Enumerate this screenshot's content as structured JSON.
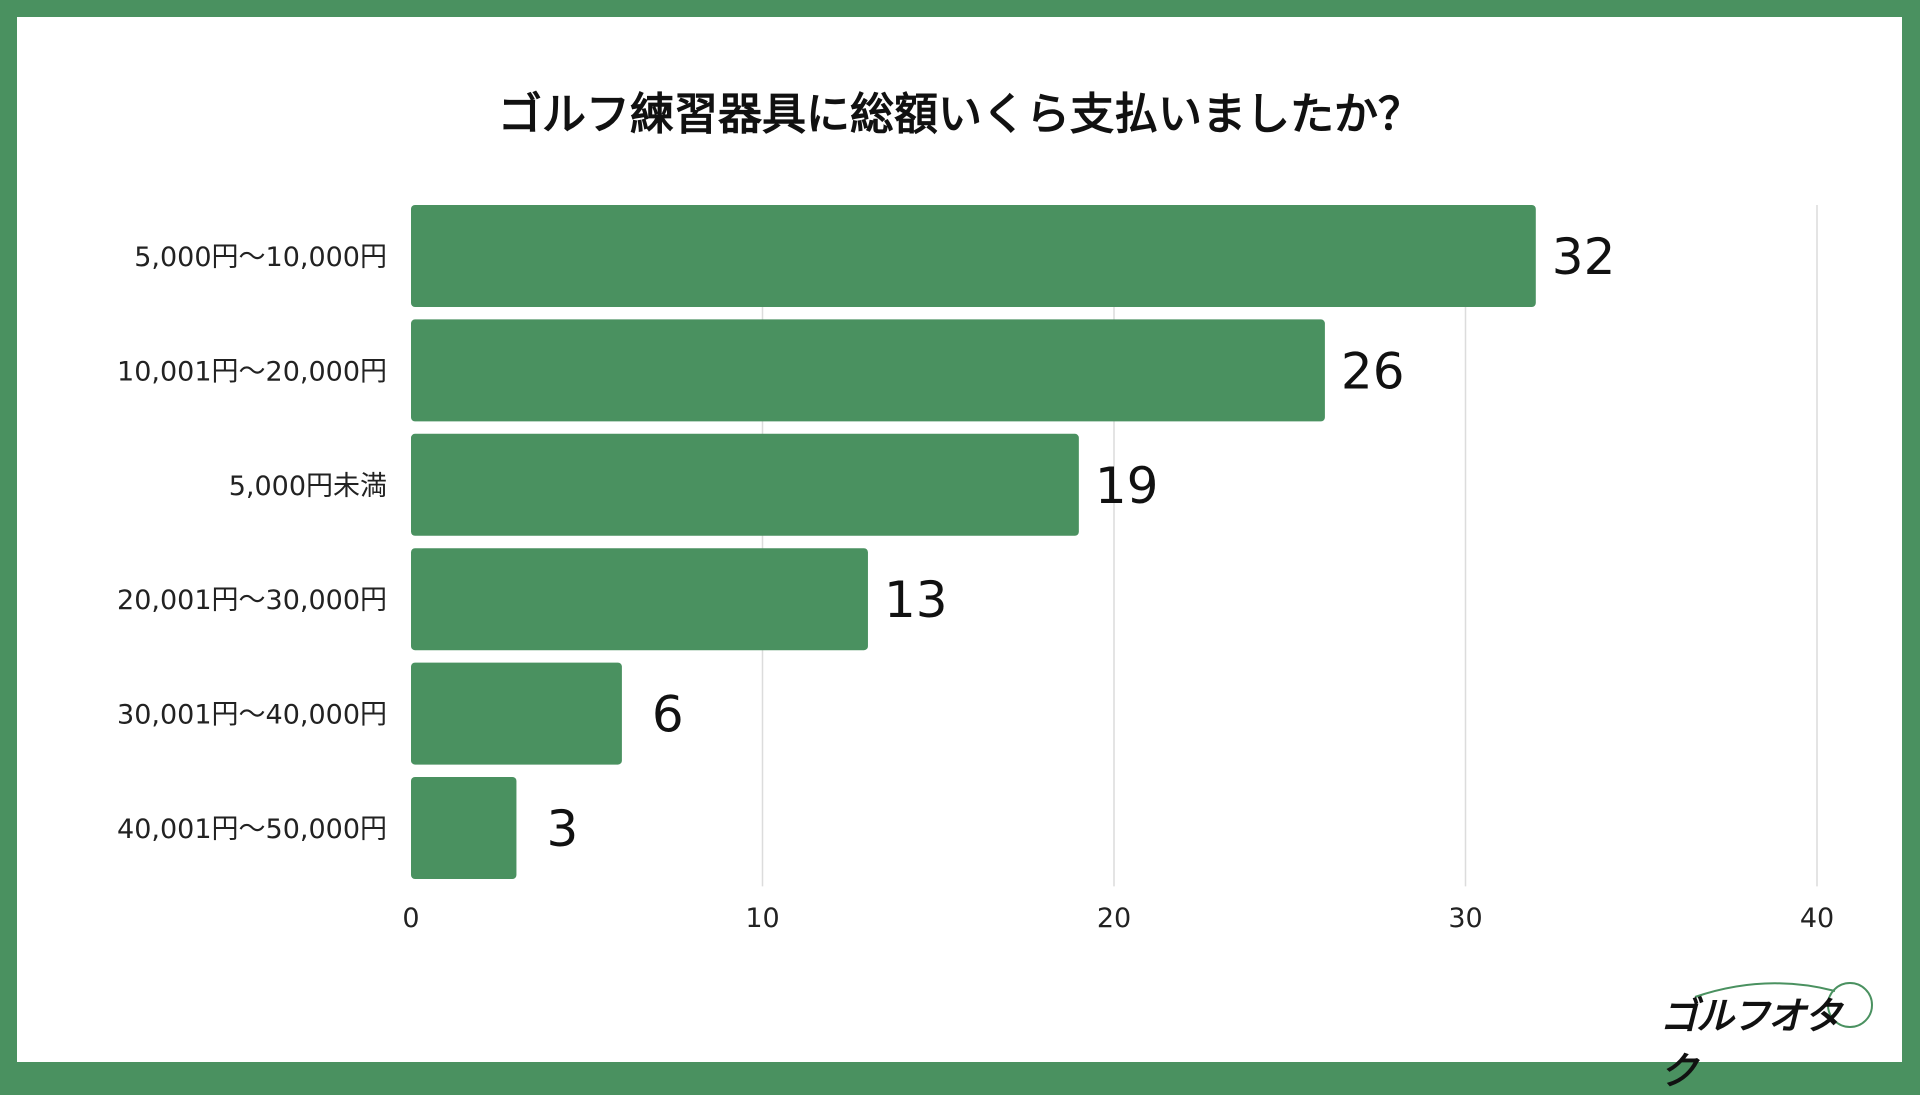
{
  "chart_data": {
    "type": "bar",
    "orientation": "horizontal",
    "title": "ゴルフ練習器具に総額いくら支払いましたか？",
    "categories": [
      "5,000円〜10,000円",
      "10,001円〜20,000円",
      "5,000円未満",
      "20,001円〜30,000円",
      "30,001円〜40,000円",
      "40,001円〜50,000円"
    ],
    "values": [
      32,
      26,
      19,
      13,
      6,
      3
    ],
    "xlim": [
      0,
      40
    ],
    "xticks": [
      "0",
      "10",
      "20",
      "30",
      "40"
    ],
    "xlabel": "",
    "ylabel": "",
    "grid": true,
    "bar_color": "#4a9160"
  },
  "logo": {
    "text": "ゴルフオタク"
  }
}
